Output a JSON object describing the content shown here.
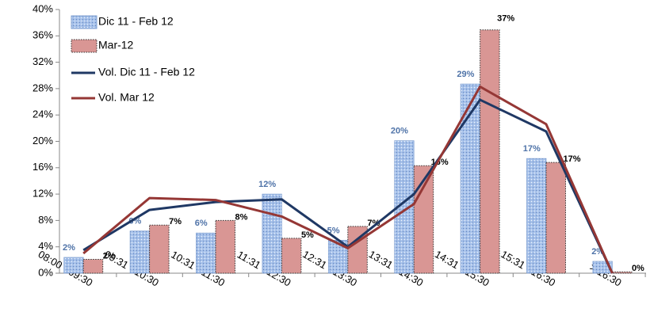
{
  "chart_data": {
    "type": "bar_line",
    "categories": [
      "08:00 - 09:30",
      "09:31 - 10:30",
      "10:31 - 11:30",
      "11:31 - 12:30",
      "12:31 - 13:30",
      "13:31 - 14:30",
      "14:31 - 15:30",
      "15:31 - 16:30",
      "> 16:30"
    ],
    "series": [
      {
        "name": "Dic 11 - Feb 12",
        "kind": "bar",
        "color": "#a6c1ea",
        "label_color": "#4f73a8",
        "values": [
          2.4,
          6.4,
          6.1,
          12.0,
          5.0,
          20.1,
          28.7,
          17.4,
          1.8
        ],
        "value_labels": [
          "2%",
          "6%",
          "6%",
          "12%",
          "5%",
          "20%",
          "29%",
          "17%",
          "2%"
        ]
      },
      {
        "name": "Mar-12",
        "kind": "bar",
        "color": "#d99694",
        "label_color": "#000000",
        "values": [
          2.1,
          7.3,
          8.0,
          5.3,
          7.1,
          16.3,
          36.9,
          16.8,
          0.2
        ],
        "value_labels": [
          "2%",
          "7%",
          "8%",
          "5%",
          "7%",
          "16%",
          "37%",
          "17%",
          "0%"
        ]
      },
      {
        "name": "Vol. Dic 11 - Feb 12",
        "kind": "line",
        "color": "#1f3864",
        "values": [
          3.5,
          9.6,
          10.8,
          11.2,
          4.0,
          12.0,
          26.3,
          21.5,
          0
        ]
      },
      {
        "name": "Vol. Mar 12",
        "kind": "line",
        "color": "#953735",
        "values": [
          3.0,
          11.4,
          11.1,
          8.6,
          3.8,
          10.5,
          28.3,
          22.6,
          0
        ]
      }
    ],
    "ylim": [
      0,
      40
    ],
    "yticks": [
      {
        "value": 0,
        "label": "0%"
      },
      {
        "value": 4,
        "label": "4%"
      },
      {
        "value": 8,
        "label": "8%"
      },
      {
        "value": 12,
        "label": "12%"
      },
      {
        "value": 16,
        "label": "16%"
      },
      {
        "value": 20,
        "label": "20%"
      },
      {
        "value": 24,
        "label": "24%"
      },
      {
        "value": 28,
        "label": "28%"
      },
      {
        "value": 32,
        "label": "32%"
      },
      {
        "value": 36,
        "label": "36%"
      },
      {
        "value": 40,
        "label": "40%"
      }
    ],
    "legend": "top-left"
  }
}
